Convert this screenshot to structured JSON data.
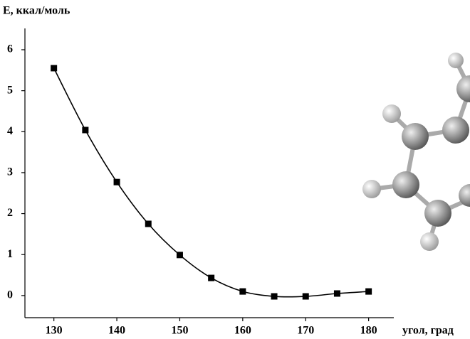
{
  "chart_data": {
    "type": "line",
    "y_label": "E, ккал/моль",
    "x_label": "угол, град",
    "x": [
      130,
      135,
      140,
      145,
      150,
      155,
      160,
      165,
      170,
      175,
      180
    ],
    "series": [
      {
        "color": "#000000",
        "values": [
          5.55,
          4.04,
          2.77,
          1.75,
          0.99,
          0.43,
          0.1,
          -0.02,
          -0.02,
          0.05,
          0.1
        ]
      }
    ],
    "xlim": [
      125.4,
      184
    ],
    "ylim": [
      -0.54,
      6.52
    ],
    "xticks": [
      130,
      140,
      150,
      160,
      170,
      180
    ],
    "yticks": [
      0,
      1,
      2,
      3,
      4,
      5,
      6
    ]
  }
}
